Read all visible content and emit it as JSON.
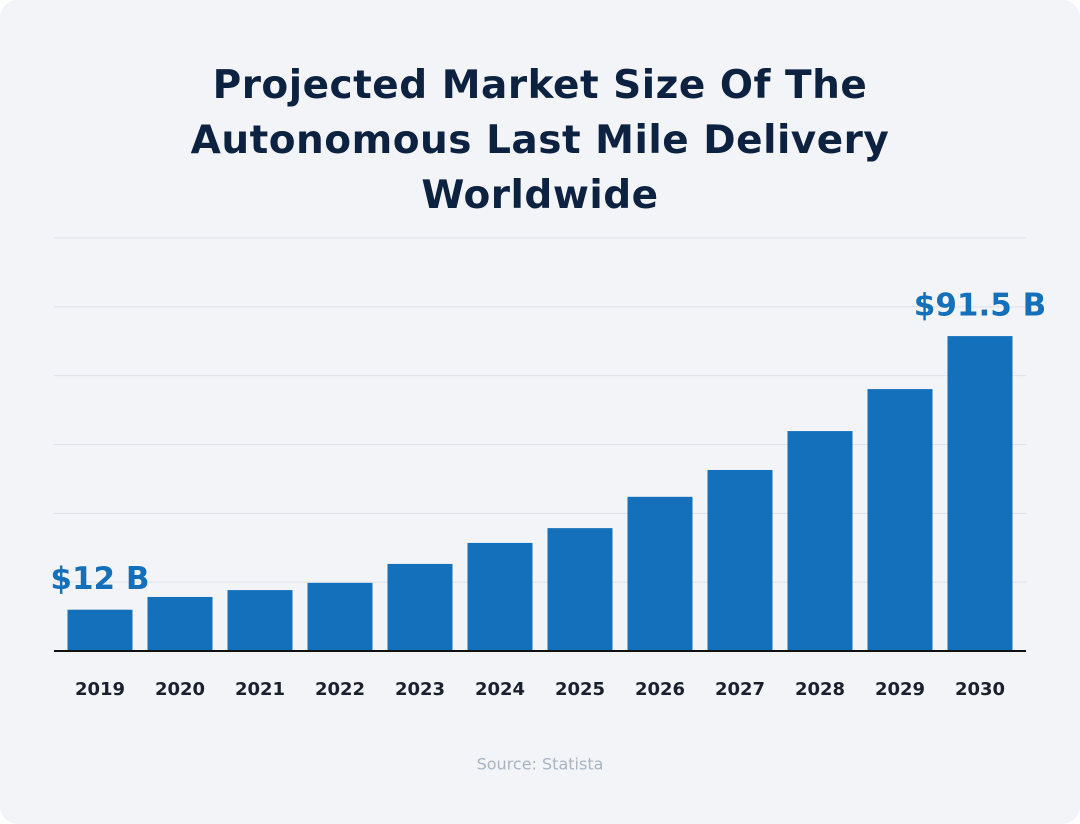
{
  "chart_data": {
    "type": "bar",
    "title": "Projected Market Size Of The Autonomous Last Mile Delivery Worldwide",
    "categories": [
      "2019",
      "2020",
      "2021",
      "2022",
      "2023",
      "2024",
      "2025",
      "2026",
      "2027",
      "2028",
      "2029",
      "2030"
    ],
    "values": [
      12,
      15.7,
      17.7,
      19.8,
      25.3,
      31.4,
      35.7,
      44.8,
      52.6,
      63.9,
      76.1,
      91.5
    ],
    "value_labels": [
      "$12 B",
      null,
      null,
      null,
      null,
      null,
      null,
      null,
      null,
      null,
      null,
      "$91.5 B"
    ],
    "color": "#1570bb",
    "ylim": [
      0,
      120
    ],
    "yticks": [
      0,
      20,
      40,
      60,
      80,
      100,
      120
    ],
    "grid": true,
    "source": "Source: Statista"
  }
}
